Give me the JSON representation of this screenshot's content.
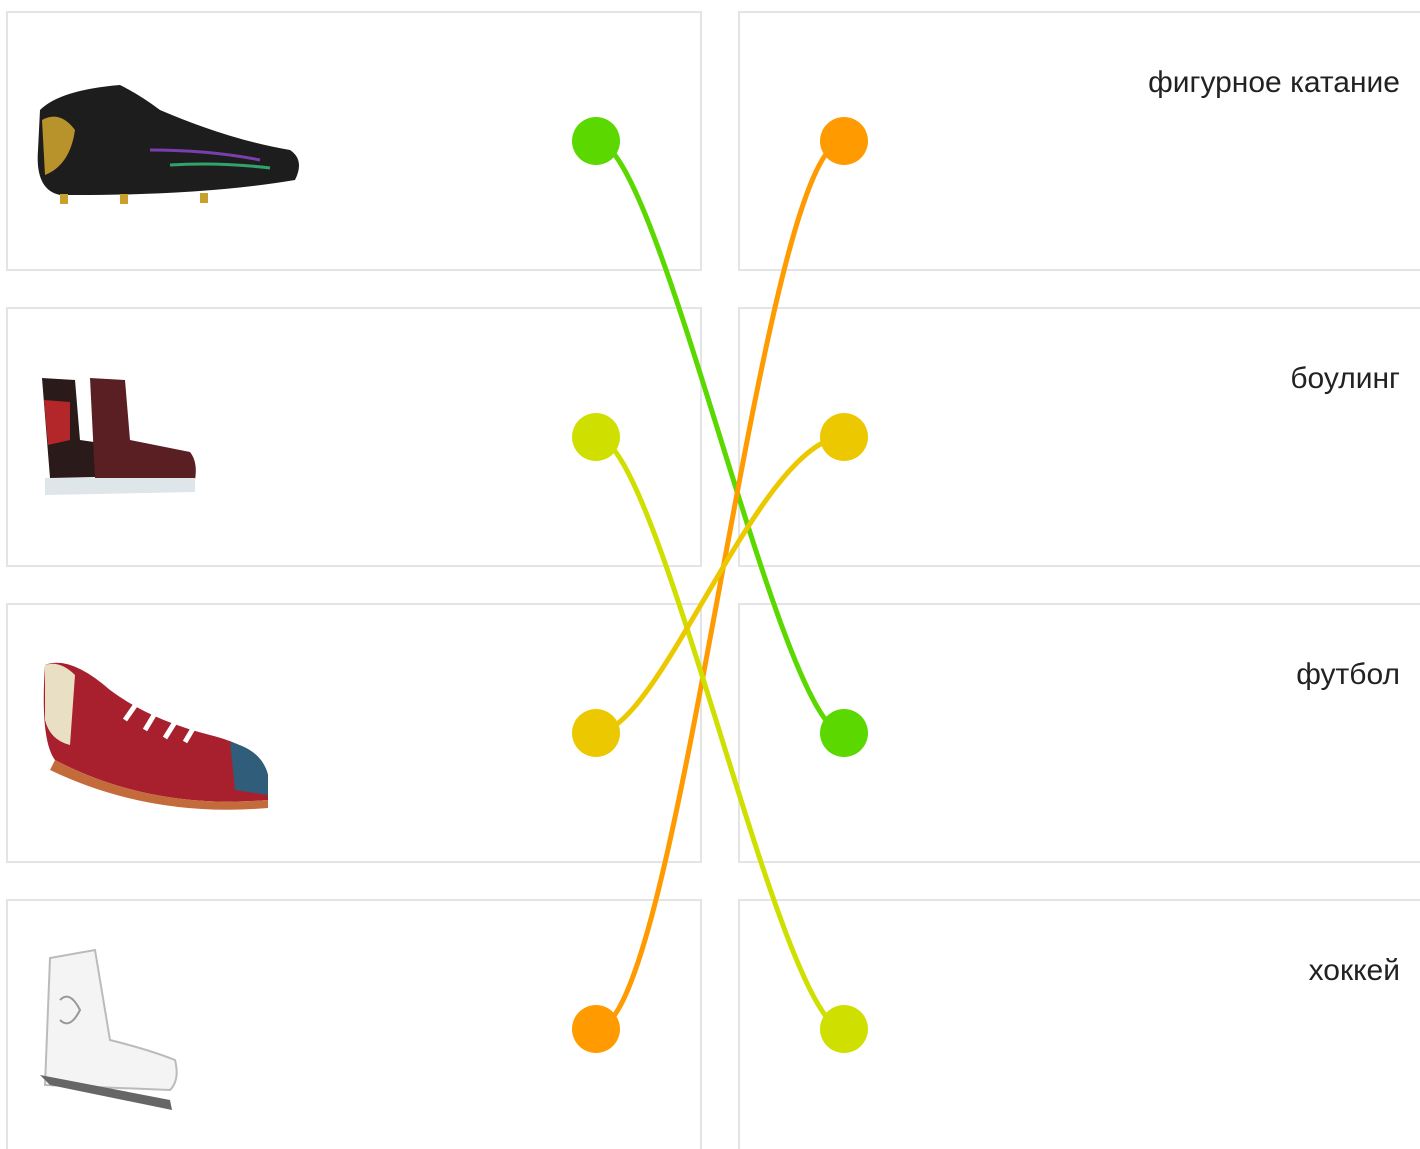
{
  "exercise": {
    "answers": [
      "фигурное катание",
      "боулинг",
      "футбол",
      "хоккей"
    ]
  }
}
